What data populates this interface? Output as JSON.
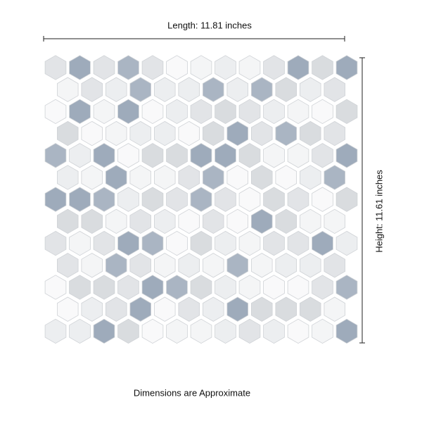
{
  "length_label": "Length: 11.81 inches",
  "height_label": "Height: 11.61 inches",
  "note": "Dimensions are Approximate"
}
